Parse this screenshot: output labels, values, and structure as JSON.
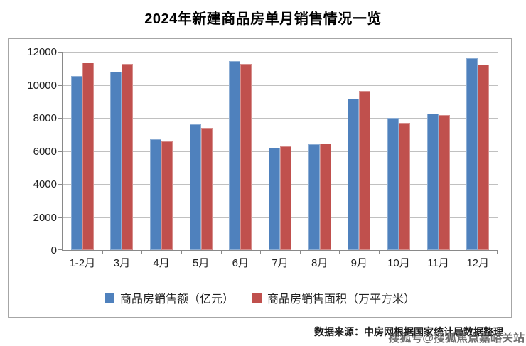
{
  "title": "2024年新建商品房单月销售情况一览",
  "chart_data": {
    "type": "bar",
    "title": "2024年新建商品房单月销售情况一览",
    "categories": [
      "1-2月",
      "3月",
      "4月",
      "5月",
      "6月",
      "7月",
      "8月",
      "9月",
      "10月",
      "11月",
      "12月"
    ],
    "series": [
      {
        "name": "商品房销售额（亿元）",
        "color": "#4F81BD",
        "values": [
          10550,
          10780,
          6690,
          7610,
          11450,
          6210,
          6390,
          9180,
          7990,
          8280,
          11600
        ]
      },
      {
        "name": "商品房销售面积（万平方米）",
        "color": "#C0504D",
        "values": [
          11370,
          11290,
          6570,
          7390,
          11280,
          6260,
          6470,
          9650,
          7690,
          8190,
          11230
        ]
      }
    ],
    "ylim": [
      0,
      12000
    ],
    "yticks": [
      0,
      2000,
      4000,
      6000,
      8000,
      10000,
      12000
    ],
    "xlabel": "",
    "ylabel": "",
    "grid": true,
    "legend_position": "bottom",
    "grid_color": "#C0C0C0",
    "axis_color": "#898989"
  },
  "footer": {
    "source": "数据来源：中房网根据国家统计局数据整理",
    "watermark": "搜狐号@搜狐焦点嘉峪关站"
  }
}
